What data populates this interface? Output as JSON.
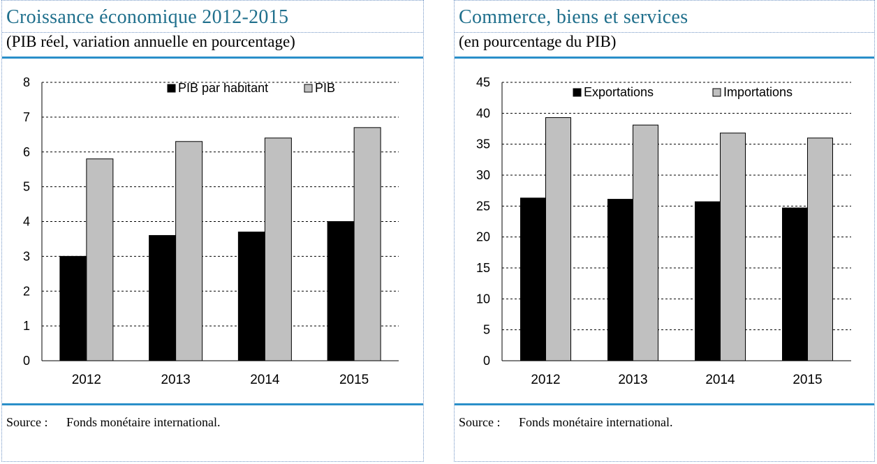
{
  "panels": [
    {
      "title": "Croissance économique 2012-2015",
      "subtitle": "(PIB réel, variation annuelle en pourcentage)",
      "source_label": "Source :",
      "source_text": "Fonds monétaire international."
    },
    {
      "title": "Commerce, biens et services",
      "subtitle": "(en pourcentage du PIB)",
      "source_label": "Source :",
      "source_text": "Fonds monétaire international."
    }
  ],
  "chart_data": [
    {
      "type": "bar",
      "title": "Croissance économique 2012-2015",
      "subtitle": "(PIB réel, variation annuelle en pourcentage)",
      "categories": [
        "2012",
        "2013",
        "2014",
        "2015"
      ],
      "series": [
        {
          "name": "PIB par habitant",
          "values": [
            3.0,
            3.6,
            3.7,
            4.0
          ],
          "color": "#000000"
        },
        {
          "name": "PIB",
          "values": [
            5.8,
            6.3,
            6.4,
            6.7
          ],
          "color": "#c0c0c0"
        }
      ],
      "ylim": [
        0,
        8
      ],
      "yticks": [
        0,
        1,
        2,
        3,
        4,
        5,
        6,
        7,
        8
      ],
      "grid": "horizontal dashed",
      "legend": "top"
    },
    {
      "type": "bar",
      "title": "Commerce, biens et services",
      "subtitle": "(en pourcentage du PIB)",
      "categories": [
        "2012",
        "2013",
        "2014",
        "2015"
      ],
      "series": [
        {
          "name": "Exportations",
          "values": [
            26.3,
            26.1,
            25.7,
            24.7
          ],
          "color": "#000000"
        },
        {
          "name": "Importations",
          "values": [
            39.3,
            38.1,
            36.8,
            36.0
          ],
          "color": "#c0c0c0"
        }
      ],
      "ylim": [
        0,
        45
      ],
      "yticks": [
        0,
        5,
        10,
        15,
        20,
        25,
        30,
        35,
        40,
        45
      ],
      "grid": "horizontal dashed",
      "legend": "top"
    }
  ]
}
